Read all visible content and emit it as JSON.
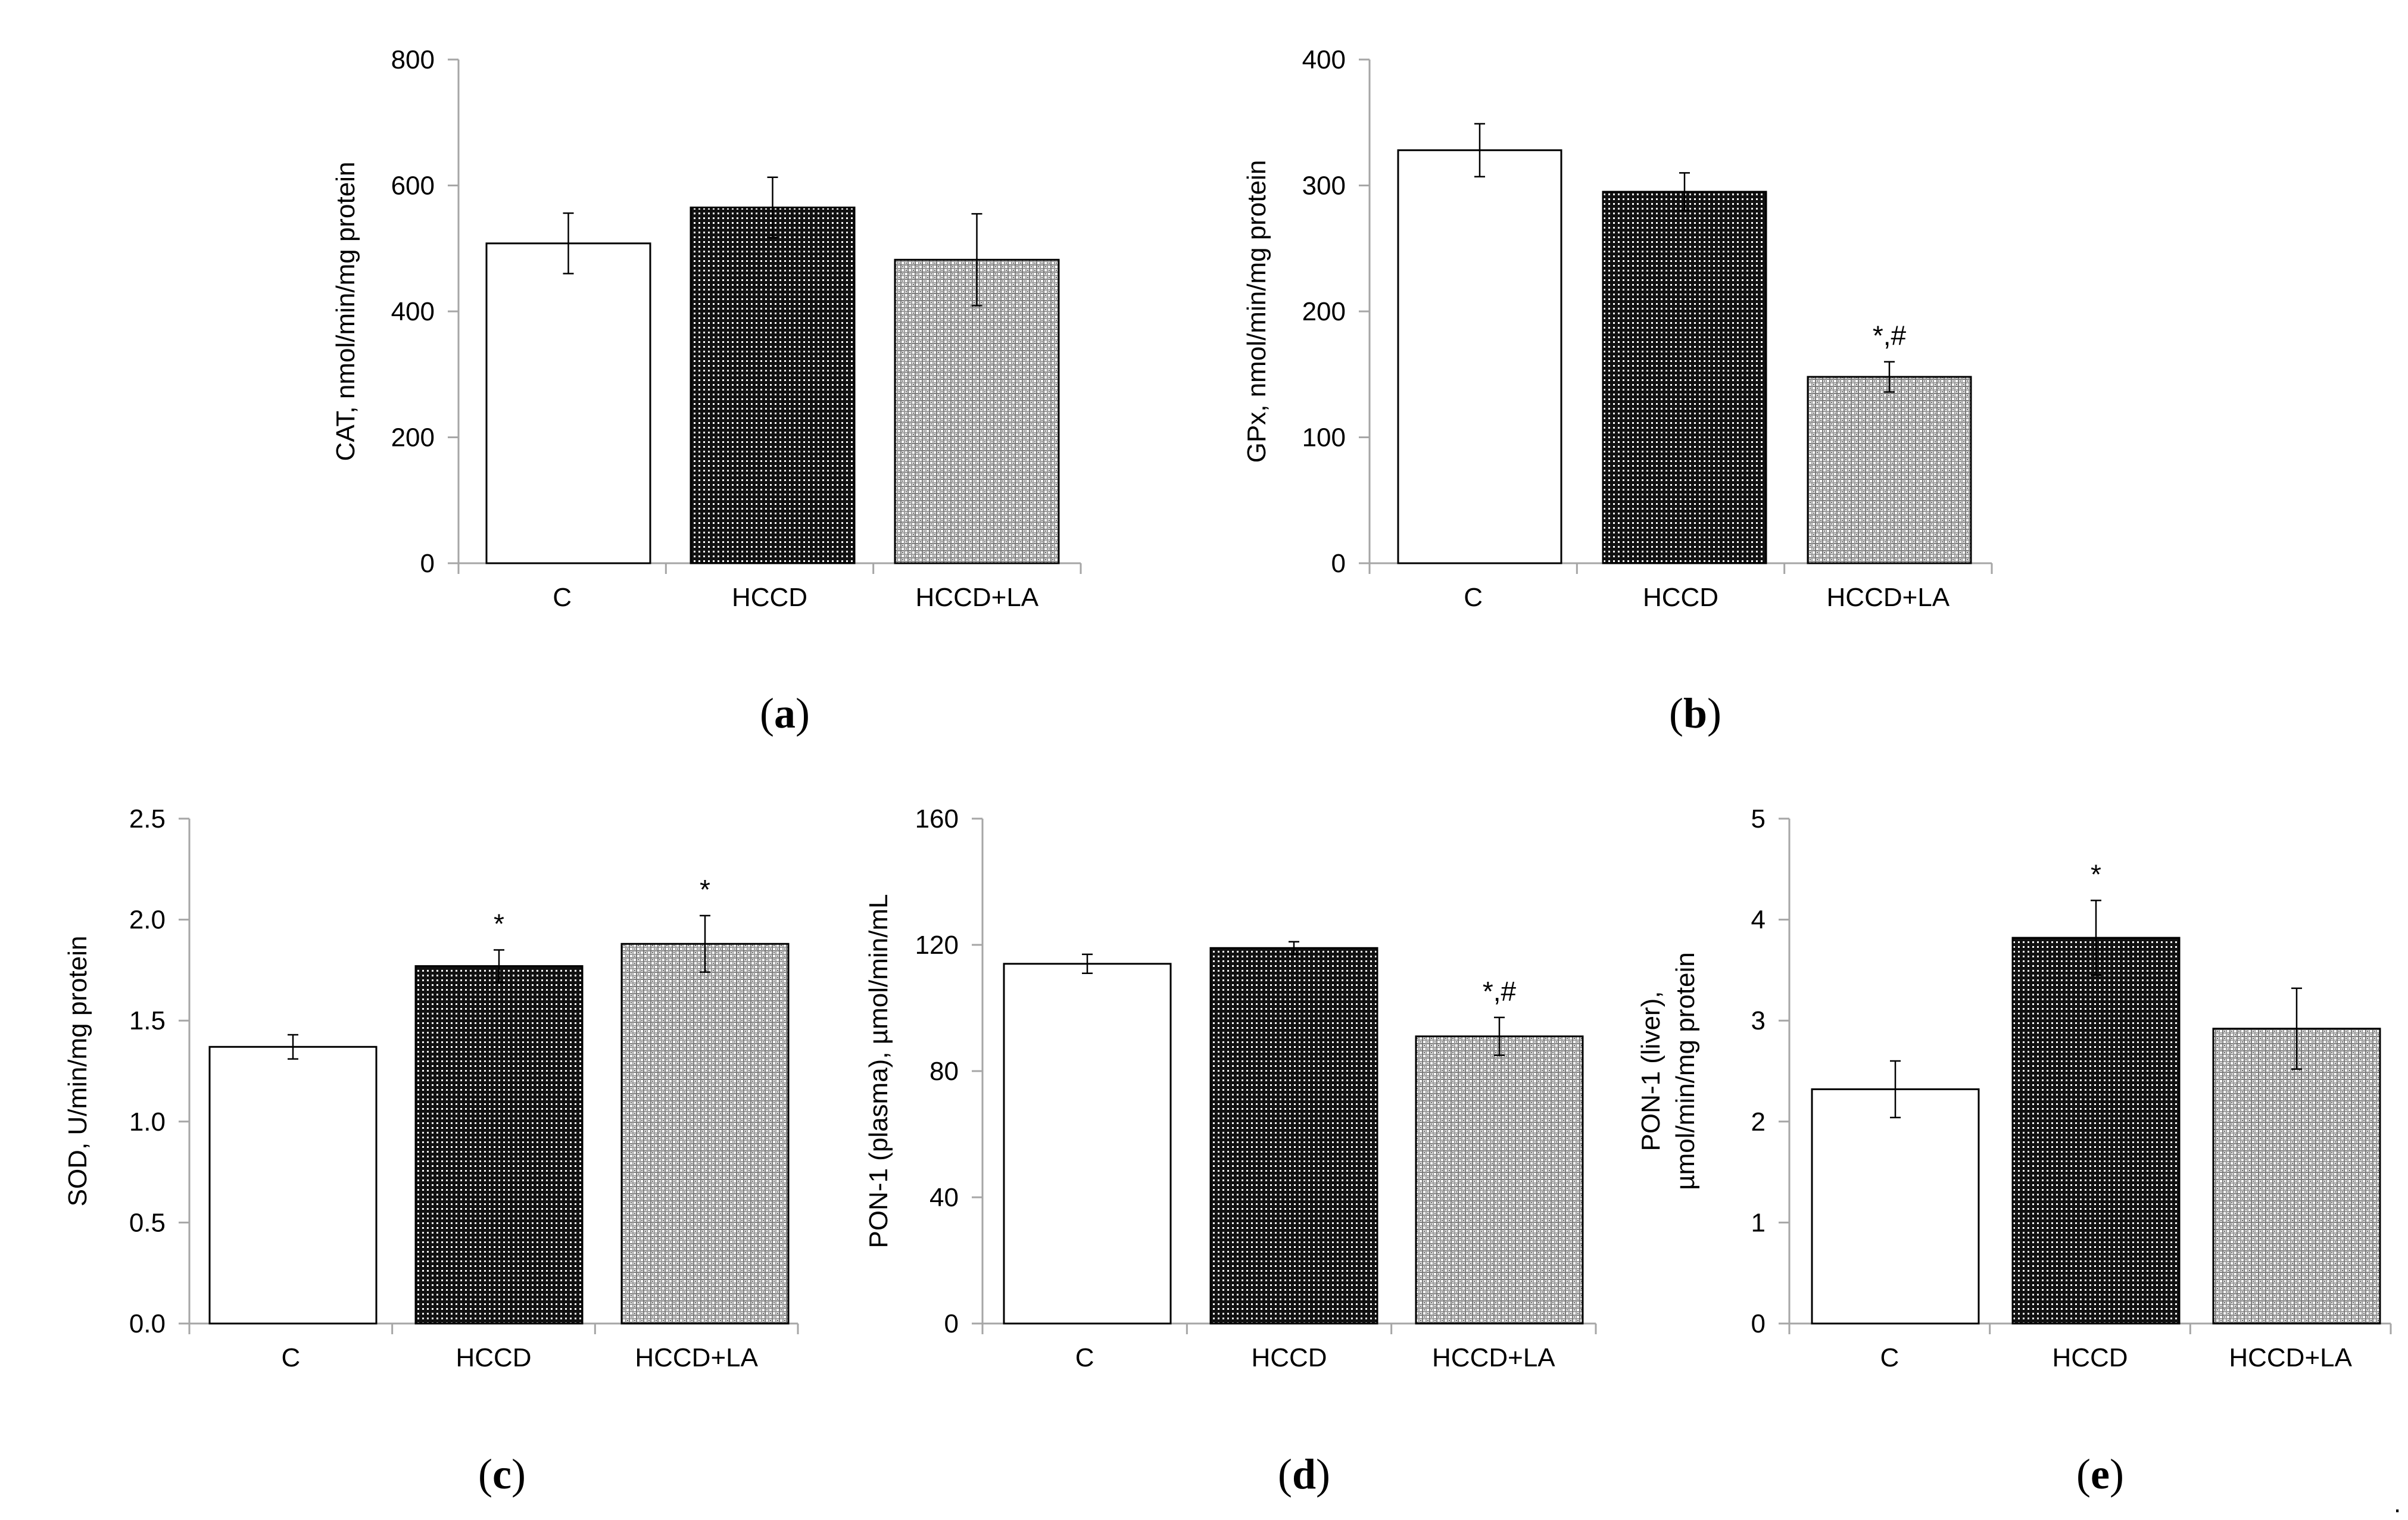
{
  "chart_data": [
    {
      "type": "bar",
      "panel": "a",
      "categories": [
        "C",
        "HCCD",
        "HCCD+LA"
      ],
      "values": [
        508,
        565,
        482
      ],
      "errors": [
        48,
        48,
        73
      ],
      "significance": [
        "",
        "",
        ""
      ],
      "ylabel": "CAT, nmol/min/mg protein",
      "ylim": [
        0,
        800
      ],
      "yticks": [
        "0",
        "200",
        "400",
        "600",
        "800"
      ],
      "legend": "none"
    },
    {
      "type": "bar",
      "panel": "b",
      "categories": [
        "C",
        "HCCD",
        "HCCD+LA"
      ],
      "values": [
        328,
        295,
        148
      ],
      "errors": [
        21,
        15,
        12
      ],
      "significance": [
        "",
        "",
        "*,#"
      ],
      "ylabel": "GPx, nmol/min/mg protein",
      "ylim": [
        0,
        400
      ],
      "yticks": [
        "0",
        "100",
        "200",
        "300",
        "400"
      ],
      "legend": "none"
    },
    {
      "type": "bar",
      "panel": "c",
      "categories": [
        "C",
        "HCCD",
        "HCCD+LA"
      ],
      "values": [
        1.37,
        1.77,
        1.88
      ],
      "errors": [
        0.06,
        0.08,
        0.14
      ],
      "significance": [
        "",
        "*",
        "*"
      ],
      "ylabel": "SOD, U/min/mg protein",
      "ylim": [
        0,
        2.5
      ],
      "yticks": [
        "0.0",
        "0.5",
        "1.0",
        "1.5",
        "2.0",
        "2.5"
      ],
      "legend": "none"
    },
    {
      "type": "bar",
      "panel": "d",
      "categories": [
        "C",
        "HCCD",
        "HCCD+LA"
      ],
      "values": [
        114,
        119,
        91
      ],
      "errors": [
        3,
        2,
        6
      ],
      "significance": [
        "",
        "",
        "*,#"
      ],
      "ylabel": "PON-1 (plasma), µmol/min/mL",
      "ylim": [
        0,
        160
      ],
      "yticks": [
        "0",
        "40",
        "80",
        "120",
        "160"
      ],
      "legend": "none"
    },
    {
      "type": "bar",
      "panel": "e",
      "categories": [
        "C",
        "HCCD",
        "HCCD+LA"
      ],
      "values": [
        2.32,
        3.82,
        2.92
      ],
      "errors": [
        0.28,
        0.37,
        0.4
      ],
      "significance": [
        "",
        "*",
        ""
      ],
      "ylabel": [
        "PON-1 (liver),",
        "µmol/min/mg protein"
      ],
      "ylim": [
        0,
        5
      ],
      "yticks": [
        "0",
        "1",
        "2",
        "3",
        "4",
        "5"
      ],
      "legend": "none"
    }
  ],
  "panel_labels": [
    "a",
    "b",
    "c",
    "d",
    "e"
  ],
  "trailing_mark": ".",
  "colors": {
    "axis": "#a6a6a6",
    "bar_outline": "#000000",
    "control_fill": "#ffffff",
    "hccd_fill": "#1a1a1a",
    "hccd_la_fill": "#9a9a9a",
    "error_bar": "#000000"
  }
}
